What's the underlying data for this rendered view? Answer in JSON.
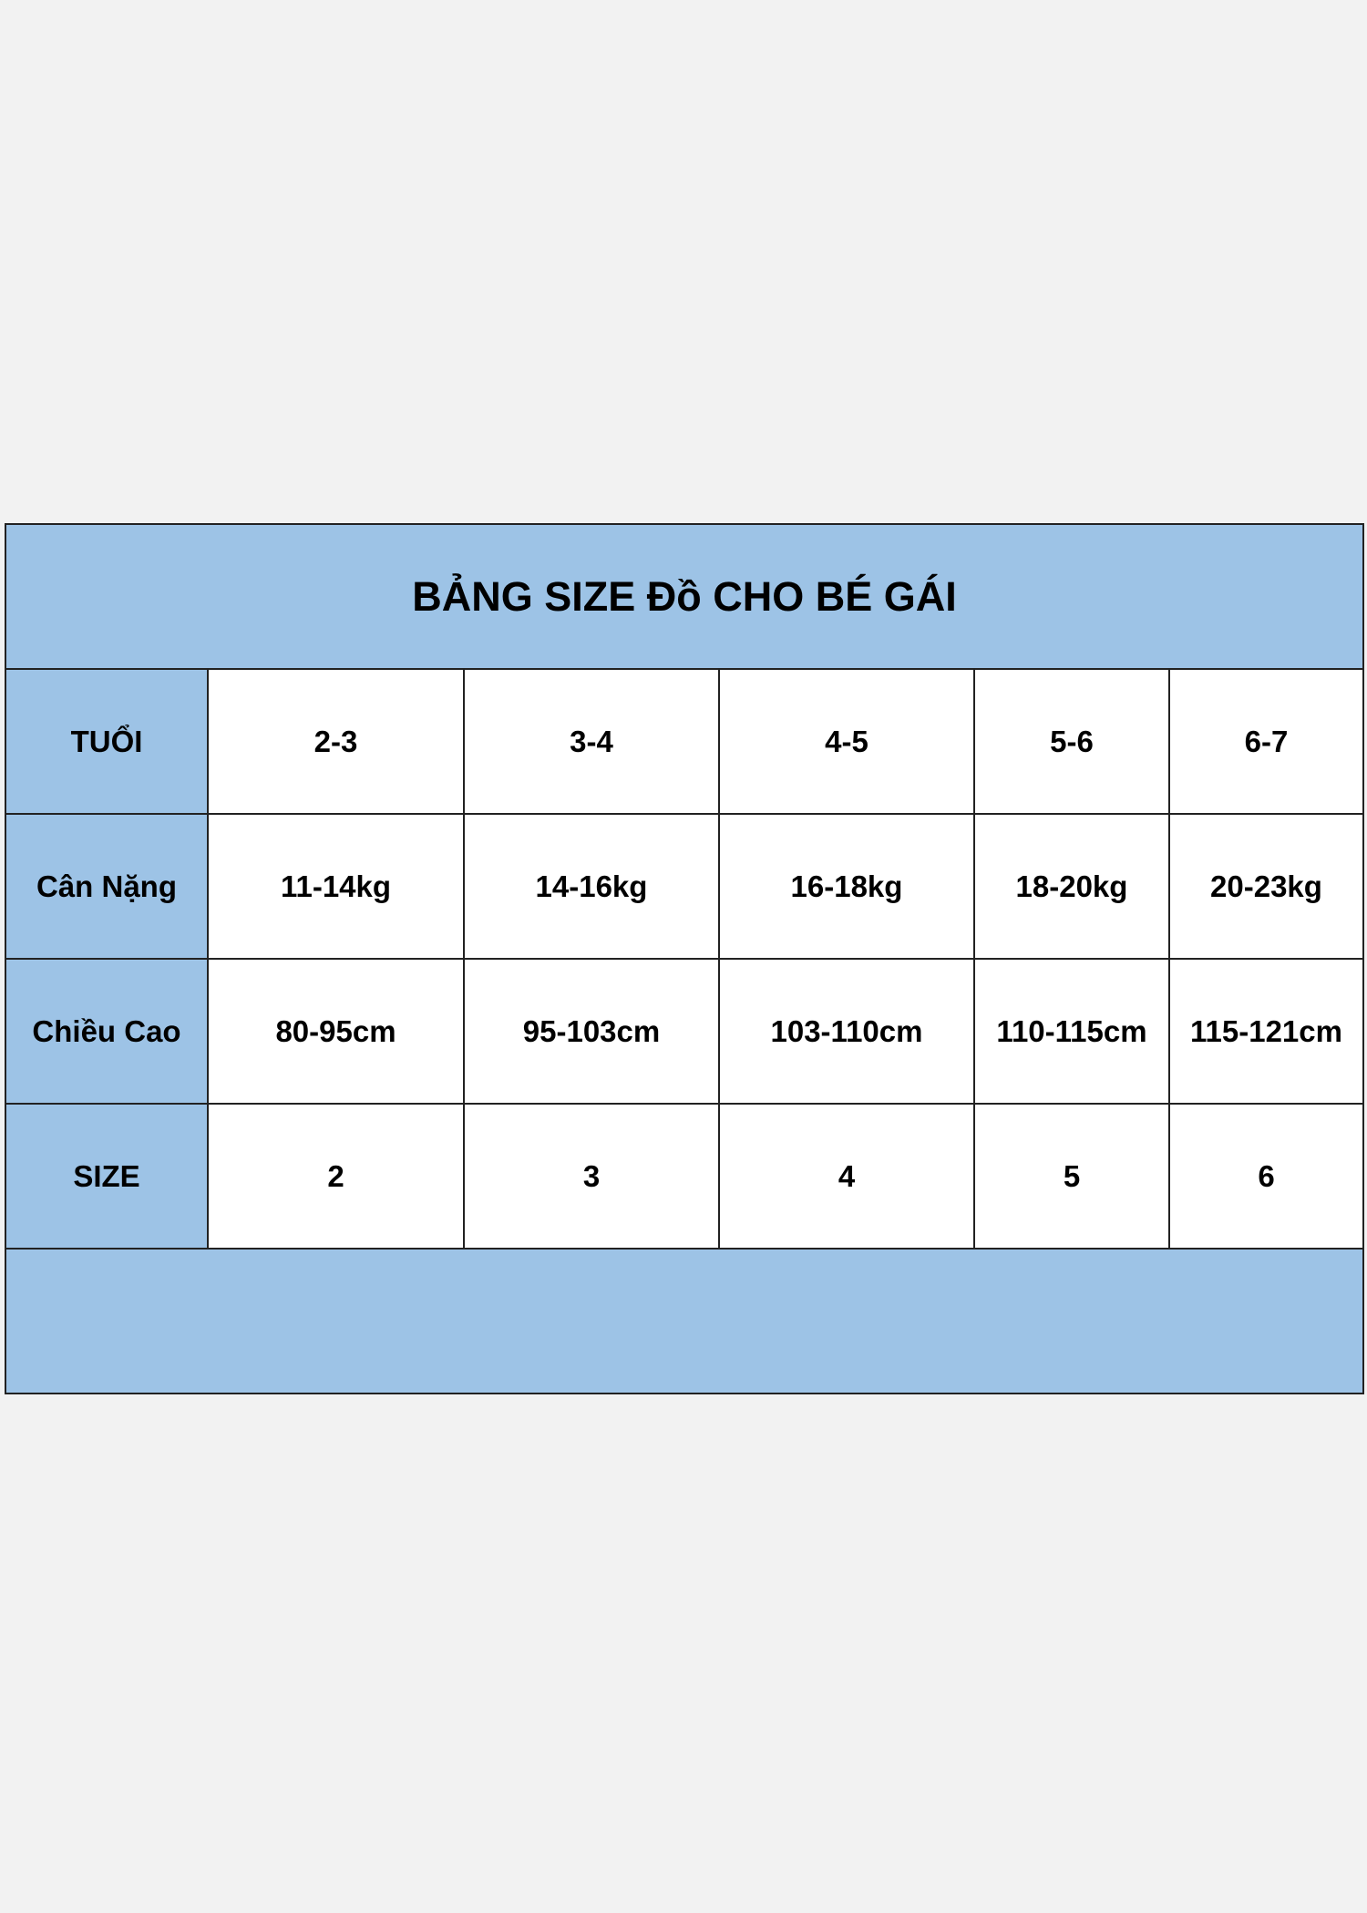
{
  "title": "BẢNG SIZE Đồ CHO BÉ GÁI",
  "rows": [
    {
      "label": "TUỔI",
      "values": [
        "2-3",
        "3-4",
        "4-5",
        "5-6",
        "6-7"
      ]
    },
    {
      "label": "Cân Nặng",
      "values": [
        "11-14kg",
        "14-16kg",
        "16-18kg",
        "18-20kg",
        "20-23kg"
      ]
    },
    {
      "label": "Chiều Cao",
      "values": [
        "80-95cm",
        "95-103cm",
        "103-110cm",
        "110-115cm",
        "115-121cm"
      ]
    },
    {
      "label": "SIZE",
      "values": [
        "2",
        "3",
        "4",
        "5",
        "6"
      ]
    }
  ],
  "colors": {
    "header_blue": "#9dc3e6",
    "background": "#f2f2f2"
  }
}
